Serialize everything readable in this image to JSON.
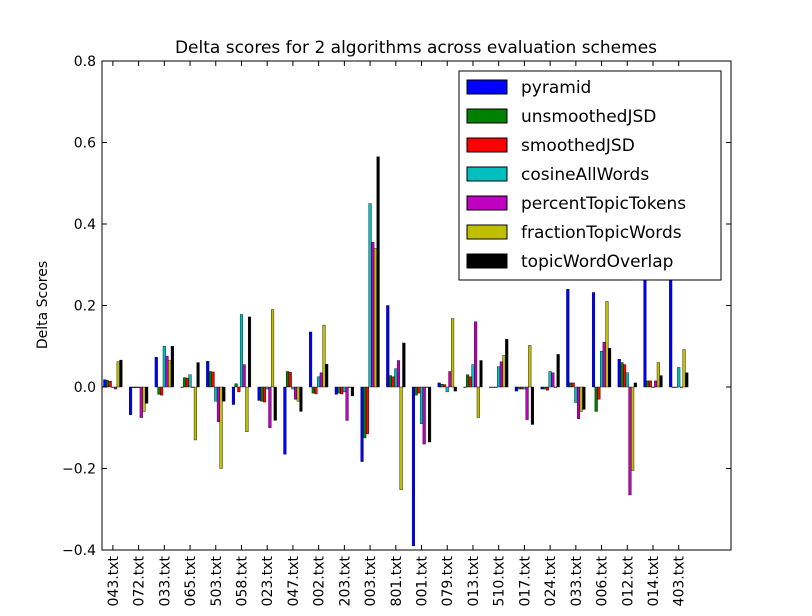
{
  "chart_data": {
    "type": "bar",
    "title": "Delta scores for 2 algorithms across evaluation schemes",
    "xlabel": "",
    "ylabel": "Delta Scores",
    "ylim": [
      -0.4,
      0.8
    ],
    "yticks": [
      "−0.4",
      "−0.2",
      "0.0",
      "0.2",
      "0.4",
      "0.6",
      "0.8"
    ],
    "grid": false,
    "legend_position": "top-right",
    "categories": [
      "043.txt",
      "072.txt",
      "033.txt",
      "065.txt",
      "503.txt",
      "058.txt",
      "023.txt",
      "047.txt",
      "002.txt",
      "203.txt",
      "003.txt",
      "801.txt",
      "001.txt",
      "079.txt",
      "013.txt",
      "510.txt",
      "017.txt",
      "024.txt",
      "033.txt",
      "006.txt",
      "012.txt",
      "014.txt",
      "403.txt"
    ],
    "series": [
      {
        "name": "pyramid",
        "color": "#0000ff",
        "values": [
          0.018,
          -0.068,
          0.073,
          0.0,
          0.063,
          -0.043,
          -0.033,
          -0.165,
          0.135,
          -0.018,
          -0.183,
          0.2,
          -0.39,
          0.01,
          0.0,
          0.0,
          -0.01,
          -0.005,
          0.24,
          0.232,
          0.068,
          0.4,
          0.4
        ]
      },
      {
        "name": "unsmoothedJSD",
        "color": "#008000",
        "values": [
          0.016,
          -0.002,
          -0.018,
          0.023,
          0.038,
          0.008,
          -0.035,
          0.038,
          -0.015,
          -0.015,
          -0.125,
          0.028,
          -0.02,
          0.007,
          0.03,
          0.0,
          -0.005,
          -0.005,
          0.01,
          -0.06,
          0.06,
          0.015,
          0.0
        ]
      },
      {
        "name": "smoothedJSD",
        "color": "#ff0000",
        "values": [
          0.014,
          -0.002,
          -0.02,
          0.022,
          0.037,
          -0.012,
          -0.037,
          0.036,
          -0.017,
          -0.017,
          -0.115,
          0.025,
          -0.015,
          0.006,
          0.025,
          0.0,
          -0.005,
          -0.008,
          0.01,
          -0.03,
          0.055,
          0.015,
          0.0
        ]
      },
      {
        "name": "cosineAllWords",
        "color": "#00bfbf",
        "values": [
          0.0,
          -0.002,
          0.1,
          0.03,
          -0.035,
          0.178,
          -0.005,
          -0.005,
          0.025,
          -0.012,
          0.45,
          0.045,
          -0.09,
          -0.012,
          0.055,
          0.05,
          -0.005,
          0.038,
          -0.038,
          0.088,
          0.035,
          0.0,
          0.048
        ]
      },
      {
        "name": "percentTopicTokens",
        "color": "#bf00bf",
        "values": [
          -0.005,
          -0.075,
          0.076,
          0.0,
          -0.085,
          0.055,
          -0.1,
          -0.03,
          0.035,
          -0.082,
          0.355,
          0.065,
          -0.14,
          0.038,
          0.16,
          0.062,
          -0.08,
          0.035,
          -0.078,
          0.11,
          -0.265,
          0.015,
          0.0
        ]
      },
      {
        "name": "fractionTopicWords",
        "color": "#bfbf00",
        "values": [
          0.062,
          -0.06,
          0.065,
          -0.13,
          -0.2,
          -0.11,
          0.19,
          -0.035,
          0.152,
          0.0,
          0.34,
          -0.252,
          0.0,
          0.168,
          -0.075,
          0.078,
          0.102,
          0.0,
          -0.06,
          0.21,
          -0.205,
          0.06,
          0.092
        ]
      },
      {
        "name": "topicWordOverlap",
        "color": "#000000",
        "values": [
          0.066,
          -0.04,
          0.1,
          0.06,
          -0.035,
          0.172,
          -0.082,
          -0.06,
          0.056,
          -0.022,
          0.565,
          0.108,
          -0.135,
          -0.01,
          0.065,
          0.117,
          -0.092,
          0.08,
          -0.055,
          0.095,
          0.01,
          0.028,
          0.035
        ]
      }
    ]
  }
}
